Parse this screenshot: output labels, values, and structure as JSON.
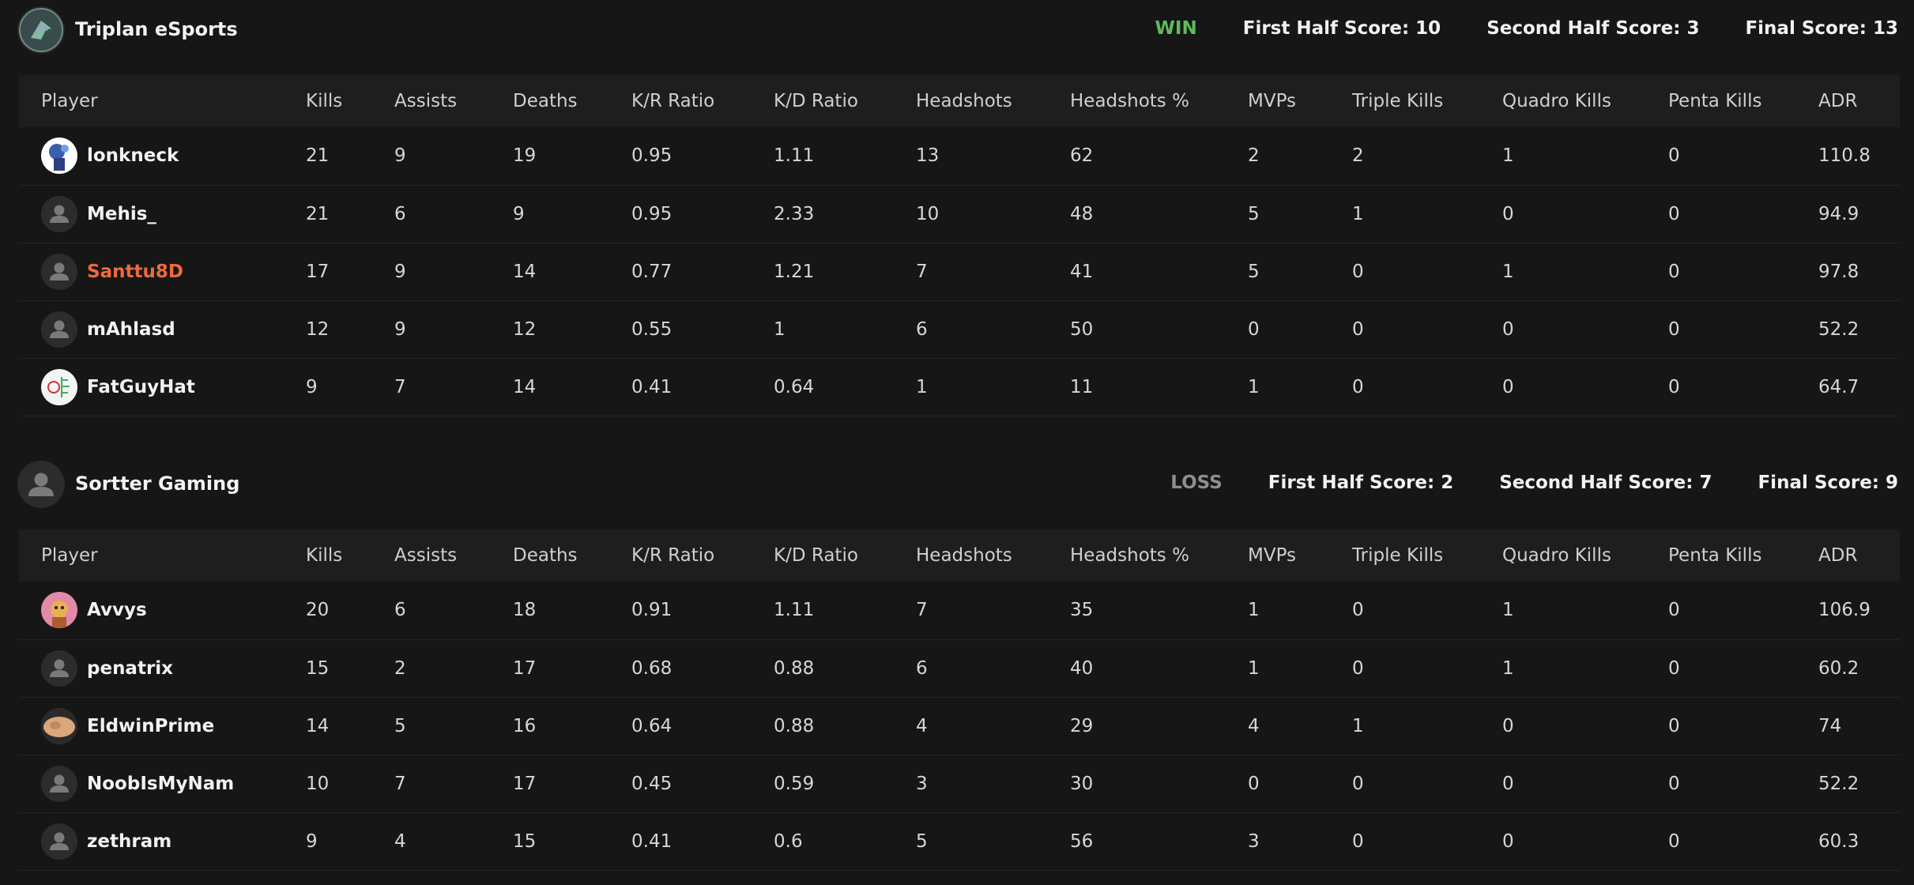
{
  "columns": [
    "Player",
    "Kills",
    "Assists",
    "Deaths",
    "K/R Ratio",
    "K/D Ratio",
    "Headshots",
    "Headshots %",
    "MVPs",
    "Triple Kills",
    "Quadro Kills",
    "Penta Kills",
    "ADR"
  ],
  "colors": {
    "background": "#161616",
    "header_row": "#1e1e1e",
    "win": "#5bbd5b",
    "loss": "#8f8f8f",
    "highlight": "#ee6a3b"
  },
  "teams": [
    {
      "name": "Triplan eSports",
      "logo_icon": "team-logo-icon",
      "result": "WIN",
      "first_half": "First Half Score: 10",
      "second_half": "Second Half Score: 3",
      "final": "Final Score: 13",
      "players": [
        {
          "name": "lonkneck",
          "avatar": "custom-avatar-blue",
          "highlight": false,
          "stats": [
            "21",
            "9",
            "19",
            "0.95",
            "1.11",
            "13",
            "62",
            "2",
            "2",
            "1",
            "0",
            "110.8"
          ]
        },
        {
          "name": "Mehis_",
          "avatar": "default-avatar",
          "highlight": false,
          "stats": [
            "21",
            "6",
            "9",
            "0.95",
            "2.33",
            "10",
            "48",
            "5",
            "1",
            "0",
            "0",
            "94.9"
          ]
        },
        {
          "name": "Santtu8D",
          "avatar": "default-avatar",
          "highlight": true,
          "stats": [
            "17",
            "9",
            "14",
            "0.77",
            "1.21",
            "7",
            "41",
            "5",
            "0",
            "1",
            "0",
            "97.8"
          ]
        },
        {
          "name": "mAhlasd",
          "avatar": "default-avatar",
          "highlight": false,
          "stats": [
            "12",
            "9",
            "12",
            "0.55",
            "1",
            "6",
            "50",
            "0",
            "0",
            "0",
            "0",
            "52.2"
          ]
        },
        {
          "name": "FatGuyHat",
          "avatar": "custom-avatar-sketch",
          "highlight": false,
          "stats": [
            "9",
            "7",
            "14",
            "0.41",
            "0.64",
            "1",
            "11",
            "1",
            "0",
            "0",
            "0",
            "64.7"
          ]
        }
      ]
    },
    {
      "name": "Sortter Gaming",
      "logo_icon": "default-avatar",
      "result": "LOSS",
      "first_half": "First Half Score: 2",
      "second_half": "Second Half Score: 7",
      "final": "Final Score: 9",
      "players": [
        {
          "name": "Avvys",
          "avatar": "custom-avatar-pink",
          "highlight": false,
          "stats": [
            "20",
            "6",
            "18",
            "0.91",
            "1.11",
            "7",
            "35",
            "1",
            "0",
            "1",
            "0",
            "106.9"
          ]
        },
        {
          "name": "penatrix",
          "avatar": "default-avatar",
          "highlight": false,
          "stats": [
            "15",
            "2",
            "17",
            "0.68",
            "0.88",
            "6",
            "40",
            "1",
            "0",
            "1",
            "0",
            "60.2"
          ]
        },
        {
          "name": "EldwinPrime",
          "avatar": "custom-avatar-tan",
          "highlight": false,
          "stats": [
            "14",
            "5",
            "16",
            "0.64",
            "0.88",
            "4",
            "29",
            "4",
            "1",
            "0",
            "0",
            "74"
          ]
        },
        {
          "name": "NoobIsMyNam",
          "avatar": "default-avatar",
          "highlight": false,
          "stats": [
            "10",
            "7",
            "17",
            "0.45",
            "0.59",
            "3",
            "30",
            "0",
            "0",
            "0",
            "0",
            "52.2"
          ]
        },
        {
          "name": "zethram",
          "avatar": "default-avatar",
          "highlight": false,
          "stats": [
            "9",
            "4",
            "15",
            "0.41",
            "0.6",
            "5",
            "56",
            "3",
            "0",
            "0",
            "0",
            "60.3"
          ]
        }
      ]
    }
  ]
}
